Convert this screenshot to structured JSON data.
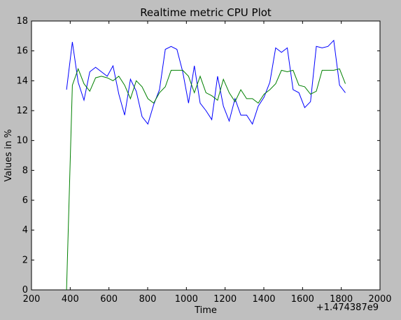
{
  "chart_data": {
    "type": "line",
    "title": "Realtime metric CPU Plot",
    "xlabel": "Time",
    "ylabel": "Values in %",
    "x_offset_label": "+1.474387e9",
    "xlim": [
      200,
      2000
    ],
    "ylim": [
      0,
      18
    ],
    "xticks": [
      200,
      400,
      600,
      800,
      1000,
      1200,
      1400,
      1600,
      1800,
      2000
    ],
    "yticks": [
      0,
      2,
      4,
      6,
      8,
      10,
      12,
      14,
      16,
      18
    ],
    "grid": false,
    "legend": "none",
    "series": [
      {
        "color": "#0000ff",
        "x": [
          381,
          411,
          441,
          471,
          501,
          531,
          561,
          591,
          621,
          651,
          681,
          711,
          741,
          771,
          801,
          831,
          861,
          891,
          921,
          951,
          981,
          1011,
          1041,
          1071,
          1101,
          1131,
          1161,
          1191,
          1221,
          1251,
          1281,
          1311,
          1341,
          1371,
          1401,
          1431,
          1461,
          1491,
          1521,
          1551,
          1581,
          1611,
          1641,
          1671,
          1701,
          1731,
          1761,
          1791,
          1821
        ],
        "y": [
          13.4,
          16.6,
          13.9,
          12.7,
          14.6,
          14.9,
          14.6,
          14.3,
          15.0,
          13.1,
          11.7,
          14.1,
          13.3,
          11.6,
          11.1,
          12.4,
          13.4,
          16.1,
          16.3,
          16.1,
          14.6,
          12.5,
          15.0,
          12.5,
          12.0,
          11.4,
          14.3,
          12.3,
          11.3,
          12.8,
          11.7,
          11.7,
          11.1,
          12.3,
          12.9,
          13.9,
          16.2,
          15.9,
          16.2,
          13.4,
          13.2,
          12.2,
          12.6,
          16.3,
          16.2,
          16.3,
          16.7,
          13.7,
          13.2
        ]
      },
      {
        "color": "#008000",
        "x": [
          381,
          411,
          441,
          471,
          501,
          531,
          561,
          591,
          621,
          651,
          681,
          711,
          741,
          771,
          801,
          831,
          861,
          891,
          921,
          951,
          981,
          1011,
          1041,
          1071,
          1101,
          1131,
          1161,
          1191,
          1221,
          1251,
          1281,
          1311,
          1341,
          1371,
          1401,
          1431,
          1461,
          1491,
          1521,
          1551,
          1581,
          1611,
          1641,
          1671,
          1701,
          1731,
          1761,
          1791,
          1821
        ],
        "y": [
          0.0,
          13.7,
          14.8,
          13.8,
          13.3,
          14.2,
          14.3,
          14.2,
          14.0,
          14.3,
          13.7,
          12.8,
          14.0,
          13.6,
          12.8,
          12.5,
          13.2,
          13.6,
          14.7,
          14.7,
          14.7,
          14.3,
          13.2,
          14.3,
          13.2,
          13.0,
          12.7,
          14.1,
          13.2,
          12.6,
          13.4,
          12.8,
          12.8,
          12.5,
          13.1,
          13.4,
          13.8,
          14.7,
          14.6,
          14.7,
          13.7,
          13.6,
          13.1,
          13.3,
          14.7,
          14.7,
          14.7,
          14.8,
          13.8
        ]
      }
    ]
  }
}
